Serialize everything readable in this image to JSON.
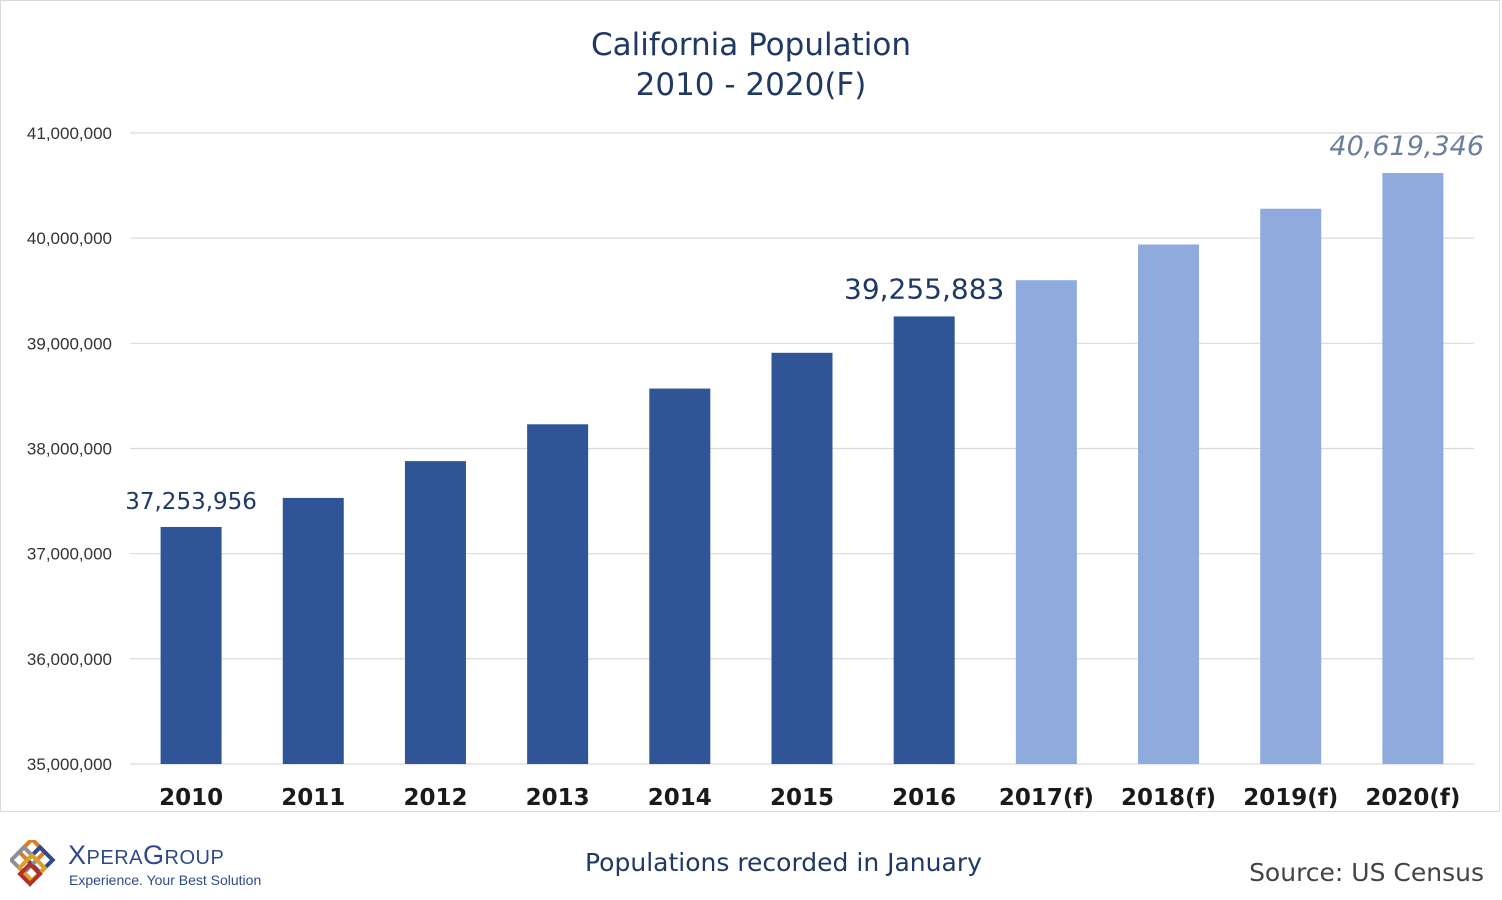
{
  "chart_data": {
    "type": "bar",
    "title": "California Population",
    "subtitle": "2010 - 2020(F)",
    "categories": [
      "2010",
      "2011",
      "2012",
      "2013",
      "2014",
      "2015",
      "2016",
      "2017(f)",
      "2018(f)",
      "2019(f)",
      "2020(f)"
    ],
    "values": [
      37253956,
      37530000,
      37880000,
      38230000,
      38570000,
      38910000,
      39255883,
      39600000,
      39940000,
      40280000,
      40619346
    ],
    "forecast": [
      false,
      false,
      false,
      false,
      false,
      false,
      false,
      true,
      true,
      true,
      true
    ],
    "data_labels": [
      {
        "index": 0,
        "text": "37,253,956"
      },
      {
        "index": 6,
        "text": "39,255,883"
      },
      {
        "index": 10,
        "text": "40,619,346"
      }
    ],
    "ylim": [
      35000000,
      41000000
    ],
    "yticks": [
      35000000,
      36000000,
      37000000,
      38000000,
      39000000,
      40000000,
      41000000
    ],
    "ytick_labels": [
      "35,000,000",
      "36,000,000",
      "37,000,000",
      "38,000,000",
      "39,000,000",
      "40,000,000",
      "41,000,000"
    ],
    "xlabel": "",
    "ylabel": "",
    "grid": true,
    "colors": {
      "actual": "#2f5597",
      "forecast": "#8faadc"
    }
  },
  "footer": {
    "logo_name_prefix": "X",
    "logo_name_mid": "PERA",
    "logo_name_g": "G",
    "logo_name_rest": "ROUP",
    "logo_tagline": "Experience. Your Best Solution",
    "note": "Populations recorded in January",
    "source": "Source: US Census"
  }
}
